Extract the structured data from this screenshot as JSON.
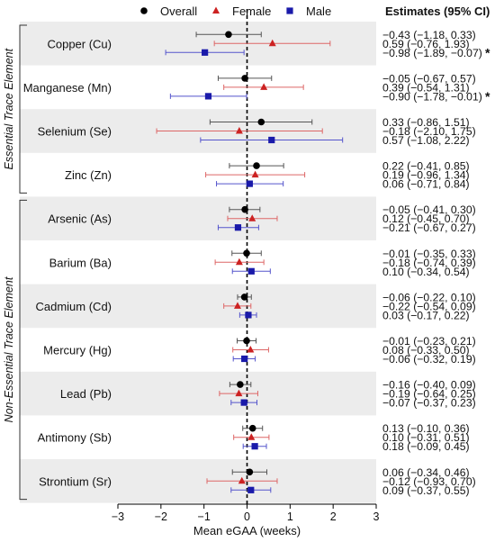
{
  "chart_data": {
    "type": "scatter",
    "subtype": "forest-plot",
    "xlabel": "Mean eGAA (weeks)",
    "xlim": [
      -3,
      3
    ],
    "xticks": [
      "-3",
      "-2",
      "-1",
      "0",
      "1",
      "2",
      "3"
    ],
    "reference_line_x": 0,
    "estimates_header": "Estimates (95% CI)",
    "legend": {
      "placement": "top",
      "entries": [
        {
          "name": "Overall",
          "color": "#000000",
          "marker": "circle"
        },
        {
          "name": "Female",
          "color": "#cc2222",
          "marker": "triangle"
        },
        {
          "name": "Male",
          "color": "#1a1aaa",
          "marker": "square"
        }
      ]
    },
    "groups": [
      {
        "label": "Essential Trace Element",
        "elements": [
          0,
          1,
          2,
          3
        ]
      },
      {
        "label": "Non-Essential Trace Element",
        "elements": [
          4,
          5,
          6,
          7,
          8,
          9,
          10
        ]
      }
    ],
    "elements": [
      {
        "label": "Copper (Cu)",
        "shaded": true,
        "estimates": [
          {
            "series": "Overall",
            "est": -0.43,
            "lo": -1.18,
            "hi": 0.33,
            "text": "−0.43 (−1.18, 0.33)",
            "sig": false
          },
          {
            "series": "Female",
            "est": 0.59,
            "lo": -0.76,
            "hi": 1.93,
            "text": "0.59 (−0.76, 1.93)",
            "sig": false
          },
          {
            "series": "Male",
            "est": -0.98,
            "lo": -1.89,
            "hi": -0.07,
            "text": "−0.98 (−1.89, −0.07)",
            "sig": true
          }
        ]
      },
      {
        "label": "Manganese (Mn)",
        "shaded": false,
        "estimates": [
          {
            "series": "Overall",
            "est": -0.05,
            "lo": -0.67,
            "hi": 0.57,
            "text": "−0.05 (−0.67, 0.57)",
            "sig": false
          },
          {
            "series": "Female",
            "est": 0.39,
            "lo": -0.54,
            "hi": 1.31,
            "text": "0.39 (−0.54, 1.31)",
            "sig": false
          },
          {
            "series": "Male",
            "est": -0.9,
            "lo": -1.78,
            "hi": -0.01,
            "text": "−0.90 (−1.78, −0.01)",
            "sig": true
          }
        ]
      },
      {
        "label": "Selenium (Se)",
        "shaded": true,
        "estimates": [
          {
            "series": "Overall",
            "est": 0.33,
            "lo": -0.86,
            "hi": 1.51,
            "text": "0.33 (−0.86, 1.51)",
            "sig": false
          },
          {
            "series": "Female",
            "est": -0.18,
            "lo": -2.1,
            "hi": 1.75,
            "text": "−0.18 (−2.10, 1.75)",
            "sig": false
          },
          {
            "series": "Male",
            "est": 0.57,
            "lo": -1.08,
            "hi": 2.22,
            "text": "0.57 (−1.08, 2.22)",
            "sig": false
          }
        ]
      },
      {
        "label": "Zinc (Zn)",
        "shaded": false,
        "estimates": [
          {
            "series": "Overall",
            "est": 0.22,
            "lo": -0.41,
            "hi": 0.85,
            "text": "0.22 (−0.41, 0.85)",
            "sig": false
          },
          {
            "series": "Female",
            "est": 0.19,
            "lo": -0.96,
            "hi": 1.34,
            "text": "0.19 (−0.96, 1.34)",
            "sig": false
          },
          {
            "series": "Male",
            "est": 0.06,
            "lo": -0.71,
            "hi": 0.84,
            "text": "0.06 (−0.71, 0.84)",
            "sig": false
          }
        ]
      },
      {
        "label": "Arsenic (As)",
        "shaded": true,
        "estimates": [
          {
            "series": "Overall",
            "est": -0.05,
            "lo": -0.41,
            "hi": 0.3,
            "text": "−0.05 (−0.41, 0.30)",
            "sig": false
          },
          {
            "series": "Female",
            "est": 0.12,
            "lo": -0.45,
            "hi": 0.7,
            "text": "0.12 (−0.45, 0.70)",
            "sig": false
          },
          {
            "series": "Male",
            "est": -0.21,
            "lo": -0.67,
            "hi": 0.27,
            "text": "−0.21 (−0.67, 0.27)",
            "sig": false
          }
        ]
      },
      {
        "label": "Barium (Ba)",
        "shaded": false,
        "estimates": [
          {
            "series": "Overall",
            "est": -0.01,
            "lo": -0.35,
            "hi": 0.33,
            "text": "−0.01 (−0.35, 0.33)",
            "sig": false
          },
          {
            "series": "Female",
            "est": -0.18,
            "lo": -0.74,
            "hi": 0.39,
            "text": "−0.18 (−0.74, 0.39)",
            "sig": false
          },
          {
            "series": "Male",
            "est": 0.1,
            "lo": -0.34,
            "hi": 0.54,
            "text": "0.10 (−0.34, 0.54)",
            "sig": false
          }
        ]
      },
      {
        "label": "Cadmium (Cd)",
        "shaded": true,
        "estimates": [
          {
            "series": "Overall",
            "est": -0.06,
            "lo": -0.22,
            "hi": 0.1,
            "text": "−0.06 (−0.22, 0.10)",
            "sig": false
          },
          {
            "series": "Female",
            "est": -0.22,
            "lo": -0.54,
            "hi": 0.09,
            "text": "−0.22 (−0.54, 0.09)",
            "sig": false
          },
          {
            "series": "Male",
            "est": 0.03,
            "lo": -0.17,
            "hi": 0.22,
            "text": "0.03 (−0.17, 0.22)",
            "sig": false
          }
        ]
      },
      {
        "label": "Mercury (Hg)",
        "shaded": false,
        "estimates": [
          {
            "series": "Overall",
            "est": -0.01,
            "lo": -0.23,
            "hi": 0.21,
            "text": "−0.01 (−0.23, 0.21)",
            "sig": false
          },
          {
            "series": "Female",
            "est": 0.08,
            "lo": -0.33,
            "hi": 0.5,
            "text": "0.08 (−0.33, 0.50)",
            "sig": false
          },
          {
            "series": "Male",
            "est": -0.06,
            "lo": -0.32,
            "hi": 0.19,
            "text": "−0.06 (−0.32, 0.19)",
            "sig": false
          }
        ]
      },
      {
        "label": "Lead  (Pb)",
        "shaded": true,
        "estimates": [
          {
            "series": "Overall",
            "est": -0.16,
            "lo": -0.4,
            "hi": 0.09,
            "text": "−0.16 (−0.40, 0.09)",
            "sig": false
          },
          {
            "series": "Female",
            "est": -0.19,
            "lo": -0.64,
            "hi": 0.25,
            "text": "−0.19 (−0.64, 0.25)",
            "sig": false
          },
          {
            "series": "Male",
            "est": -0.07,
            "lo": -0.37,
            "hi": 0.23,
            "text": "−0.07 (−0.37, 0.23)",
            "sig": false
          }
        ]
      },
      {
        "label": "Antimony (Sb)",
        "shaded": false,
        "estimates": [
          {
            "series": "Overall",
            "est": 0.13,
            "lo": -0.1,
            "hi": 0.36,
            "text": "0.13 (−0.10, 0.36)",
            "sig": false
          },
          {
            "series": "Female",
            "est": 0.1,
            "lo": -0.31,
            "hi": 0.51,
            "text": "0.10 (−0.31, 0.51)",
            "sig": false
          },
          {
            "series": "Male",
            "est": 0.18,
            "lo": -0.09,
            "hi": 0.45,
            "text": "0.18 (−0.09, 0.45)",
            "sig": false
          }
        ]
      },
      {
        "label": "Strontium (Sr)",
        "shaded": true,
        "estimates": [
          {
            "series": "Overall",
            "est": 0.06,
            "lo": -0.34,
            "hi": 0.46,
            "text": "0.06 (−0.34, 0.46)",
            "sig": false
          },
          {
            "series": "Female",
            "est": -0.12,
            "lo": -0.93,
            "hi": 0.7,
            "text": "−0.12 (−0.93, 0.70)",
            "sig": false
          },
          {
            "series": "Male",
            "est": 0.09,
            "lo": -0.37,
            "hi": 0.55,
            "text": "0.09 (−0.37, 0.55)",
            "sig": false
          }
        ]
      }
    ],
    "significance_marker": "*",
    "colors": {
      "overall": "#000000",
      "female": "#cc2222",
      "male": "#1a1aaa",
      "ci_line_overall": "#555555",
      "ci_line_female": "#dd6666",
      "ci_line_male": "#5555cc",
      "shade": "#ececec",
      "axis": "#000000"
    }
  }
}
